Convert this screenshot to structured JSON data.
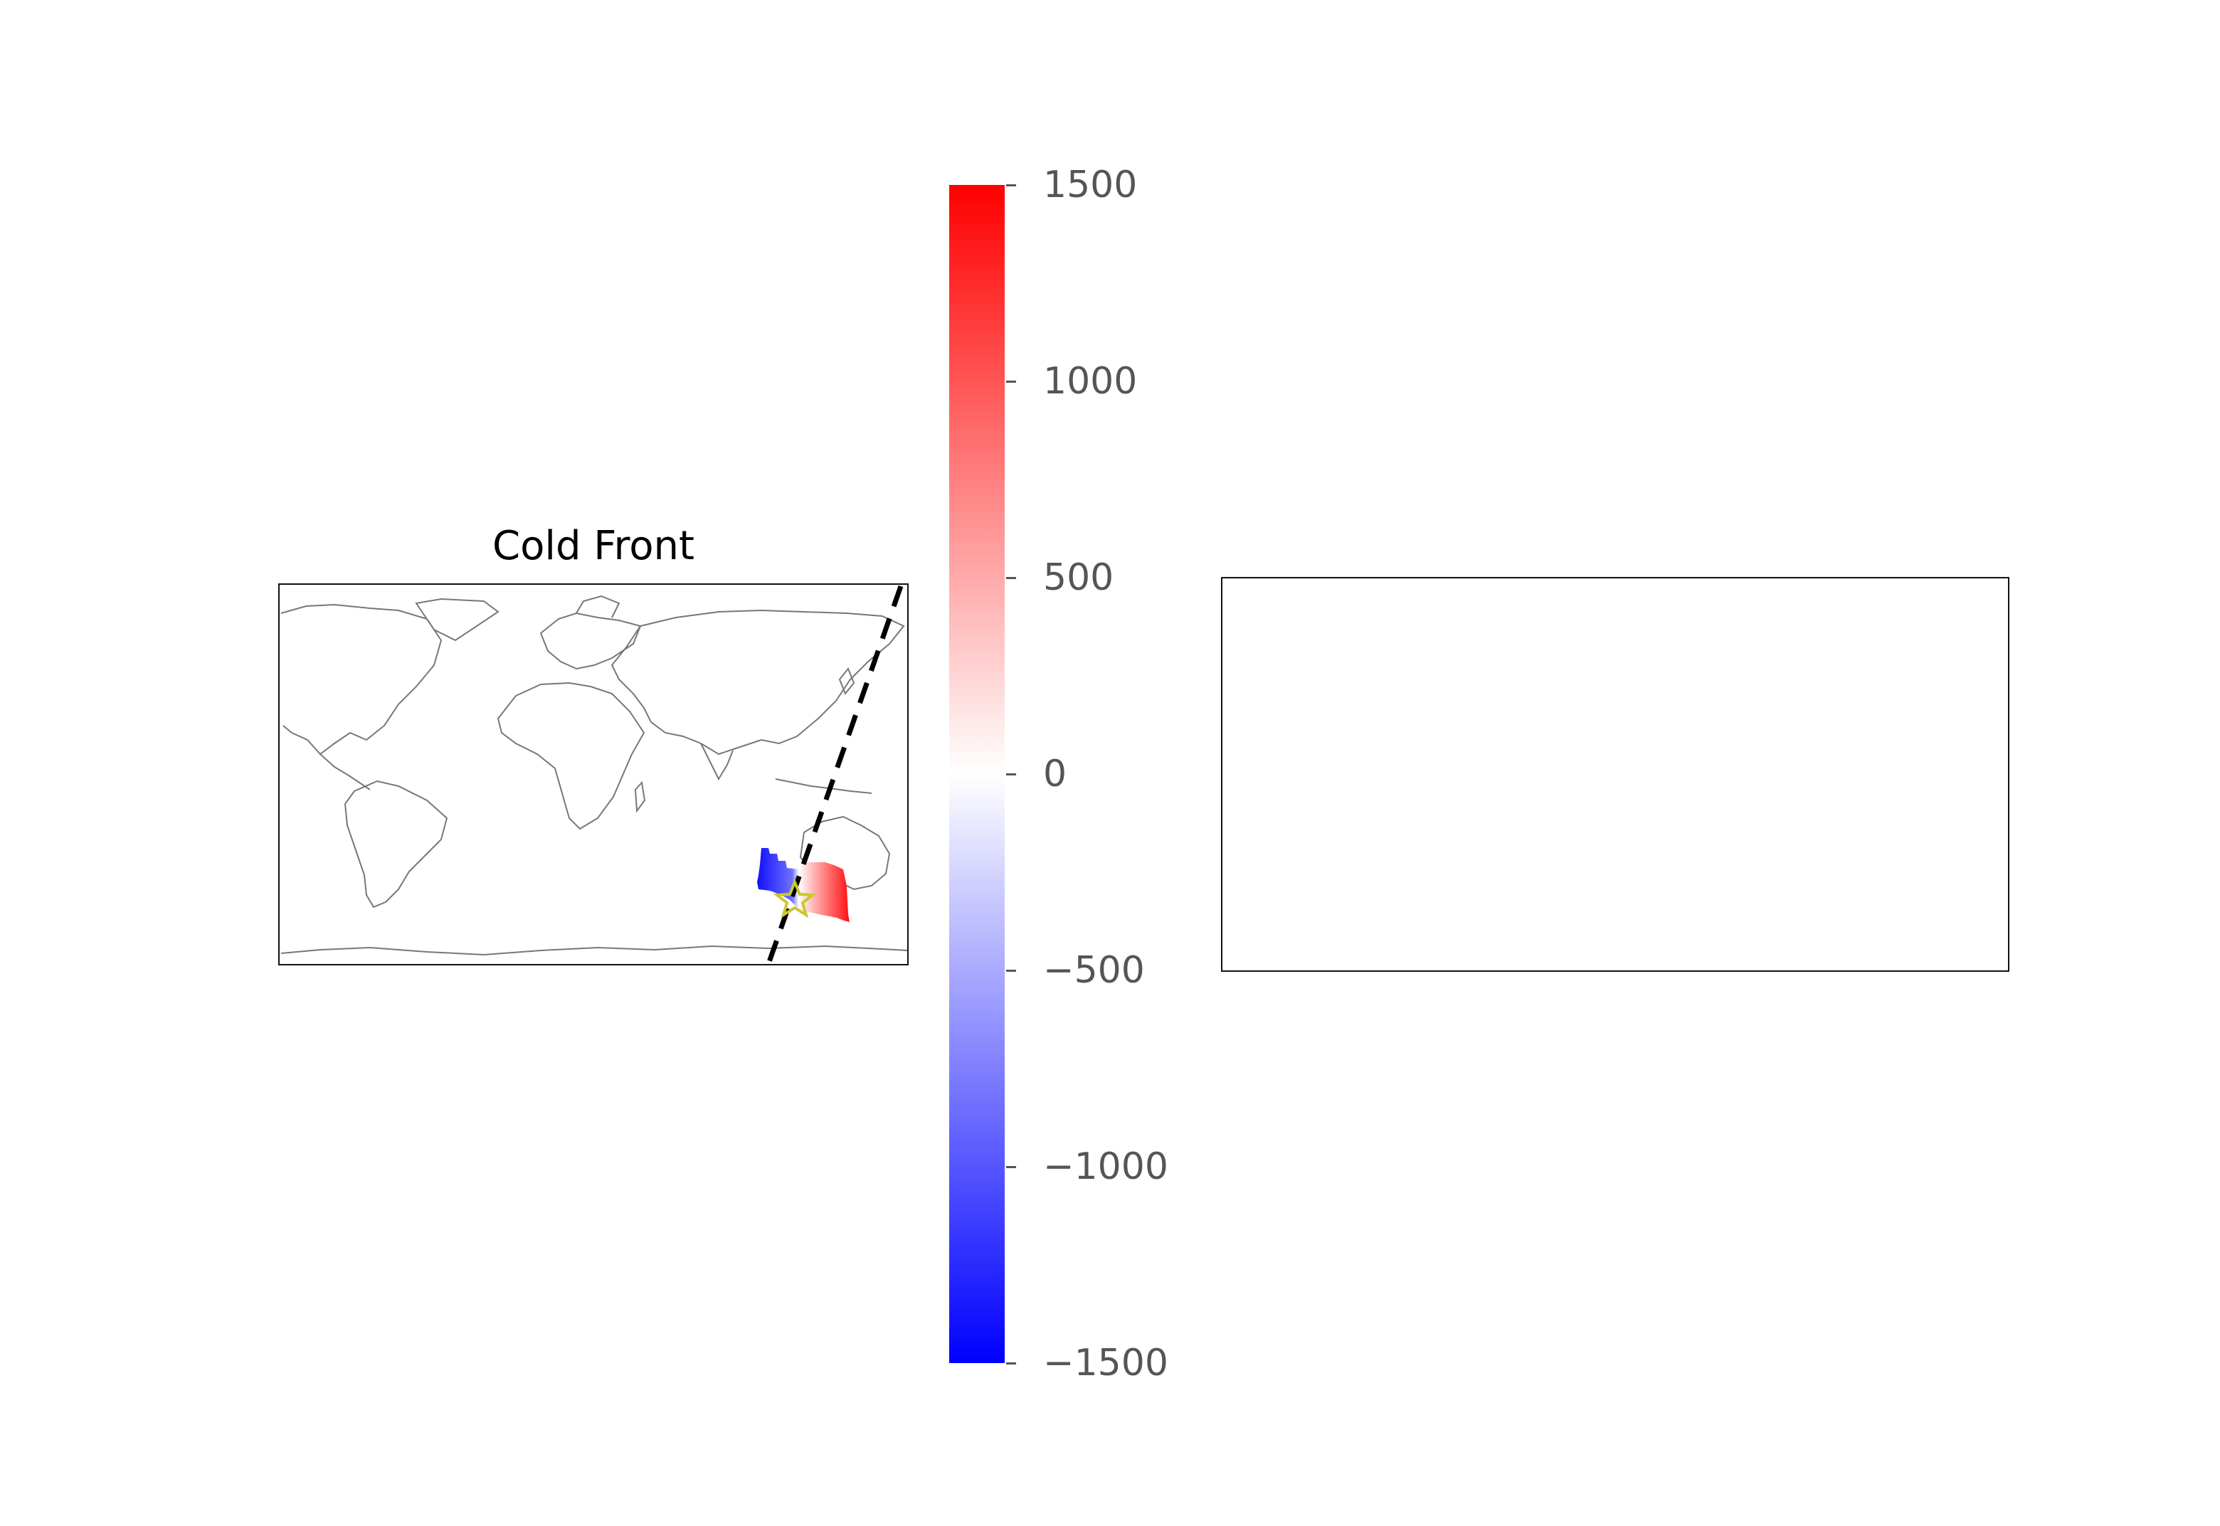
{
  "map_panel": {
    "title": "Cold Front"
  },
  "colorbar": {
    "colormap": "bwr",
    "min": -1500,
    "max": 1500,
    "ticks": [
      {
        "value": 1500,
        "label": "1500"
      },
      {
        "value": 1000,
        "label": "1000"
      },
      {
        "value": 500,
        "label": "500"
      },
      {
        "value": 0,
        "label": "0"
      },
      {
        "value": -500,
        "label": "−500"
      },
      {
        "value": -1000,
        "label": "−1000"
      },
      {
        "value": -1500,
        "label": "−1500"
      }
    ],
    "colors": {
      "high": "#ff0000",
      "mid": "#ffffff",
      "low": "#0000ff"
    }
  },
  "features": {
    "front_line_style": "dashed",
    "front_line_color": "#000000",
    "marker": "star",
    "marker_color": "#c8c832",
    "anomaly_region": "southern Australia / Great Australian Bight"
  }
}
